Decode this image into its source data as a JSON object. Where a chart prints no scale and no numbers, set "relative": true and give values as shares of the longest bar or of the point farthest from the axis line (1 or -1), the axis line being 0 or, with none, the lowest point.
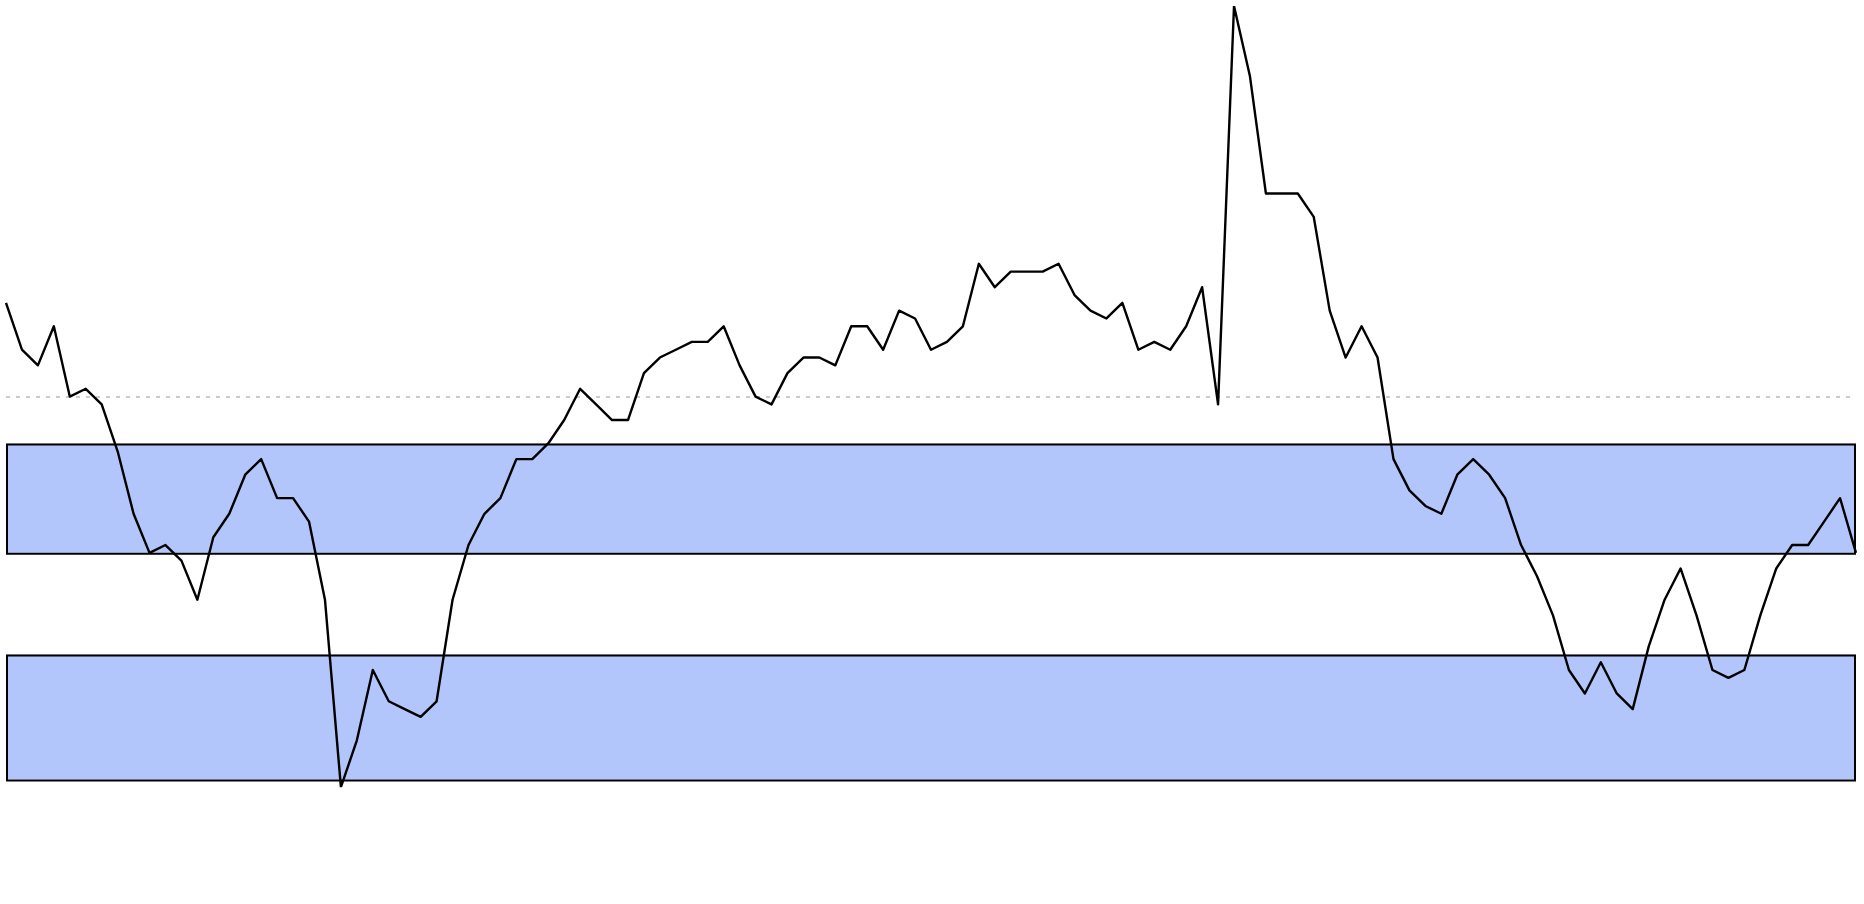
{
  "chart_data": {
    "type": "line",
    "relative": true,
    "grid": false,
    "legend": false,
    "marker": "none",
    "line_style": "solid",
    "categories": [
      null,
      null,
      null,
      null,
      null,
      null,
      null,
      null,
      null,
      null,
      null,
      null,
      null,
      null,
      null,
      null,
      null,
      null,
      null,
      null,
      null,
      null,
      null,
      null,
      null,
      null,
      null,
      null,
      null,
      null,
      null,
      null,
      null,
      null,
      null,
      null,
      null,
      null,
      null,
      null,
      null,
      null,
      null,
      null,
      null,
      null,
      null,
      null,
      null,
      null,
      null,
      null,
      null,
      null,
      null,
      null,
      null,
      null,
      null,
      null,
      null,
      null,
      null,
      null,
      null,
      null,
      null,
      null,
      null,
      null,
      null,
      null,
      null,
      null,
      null,
      null,
      null,
      null,
      null,
      null,
      null,
      null,
      null,
      null,
      null,
      null,
      null,
      null,
      null,
      null,
      null,
      null,
      null,
      null,
      null,
      null,
      null,
      null,
      null,
      null,
      null,
      null,
      null,
      null,
      null,
      null,
      null,
      null,
      null,
      null,
      null,
      null,
      null,
      null,
      null,
      null,
      null
    ],
    "series": [
      {
        "color": "#000000",
        "values": [
          0.62,
          0.56,
          0.54,
          0.59,
          0.5,
          0.51,
          0.49,
          0.43,
          0.35,
          0.3,
          0.31,
          0.29,
          0.24,
          0.32,
          0.35,
          0.4,
          0.42,
          0.37,
          0.37,
          0.34,
          0.24,
          0,
          0.06,
          0.15,
          0.11,
          0.1,
          0.09,
          0.11,
          0.24,
          0.31,
          0.35,
          0.37,
          0.42,
          0.42,
          0.44,
          0.47,
          0.51,
          0.49,
          0.47,
          0.47,
          0.53,
          0.55,
          0.56,
          0.57,
          0.57,
          0.59,
          0.54,
          0.5,
          0.49,
          0.53,
          0.55,
          0.55,
          0.54,
          0.59,
          0.59,
          0.56,
          0.61,
          0.6,
          0.56,
          0.57,
          0.59,
          0.67,
          0.64,
          0.66,
          0.66,
          0.66,
          0.67,
          0.63,
          0.61,
          0.6,
          0.62,
          0.56,
          0.57,
          0.56,
          0.59,
          0.64,
          0.49,
          1,
          0.91,
          0.76,
          0.76,
          0.76,
          0.73,
          0.61,
          0.55,
          0.59,
          0.55,
          0.42,
          0.38,
          0.36,
          0.35,
          0.4,
          0.42,
          0.4,
          0.37,
          0.31,
          0.27,
          0.22,
          0.15,
          0.12,
          0.16,
          0.12,
          0.1,
          0.18,
          0.24,
          0.28,
          0.22,
          0.15,
          0.14,
          0.15,
          0.22,
          0.28,
          0.31,
          0.31,
          0.34,
          0.37,
          0.3
        ]
      }
    ],
    "bands": [
      {
        "axis": "y",
        "from": 0.3,
        "to": 0.44,
        "color": "#b3c6fb"
      },
      {
        "axis": "y",
        "from": 0.01,
        "to": 0.17,
        "color": "#b3c6fb"
      }
    ],
    "ref_lines": [
      {
        "axis": "y",
        "value": 0.5,
        "color": "#cccccc",
        "line_style": "dotted"
      }
    ]
  }
}
